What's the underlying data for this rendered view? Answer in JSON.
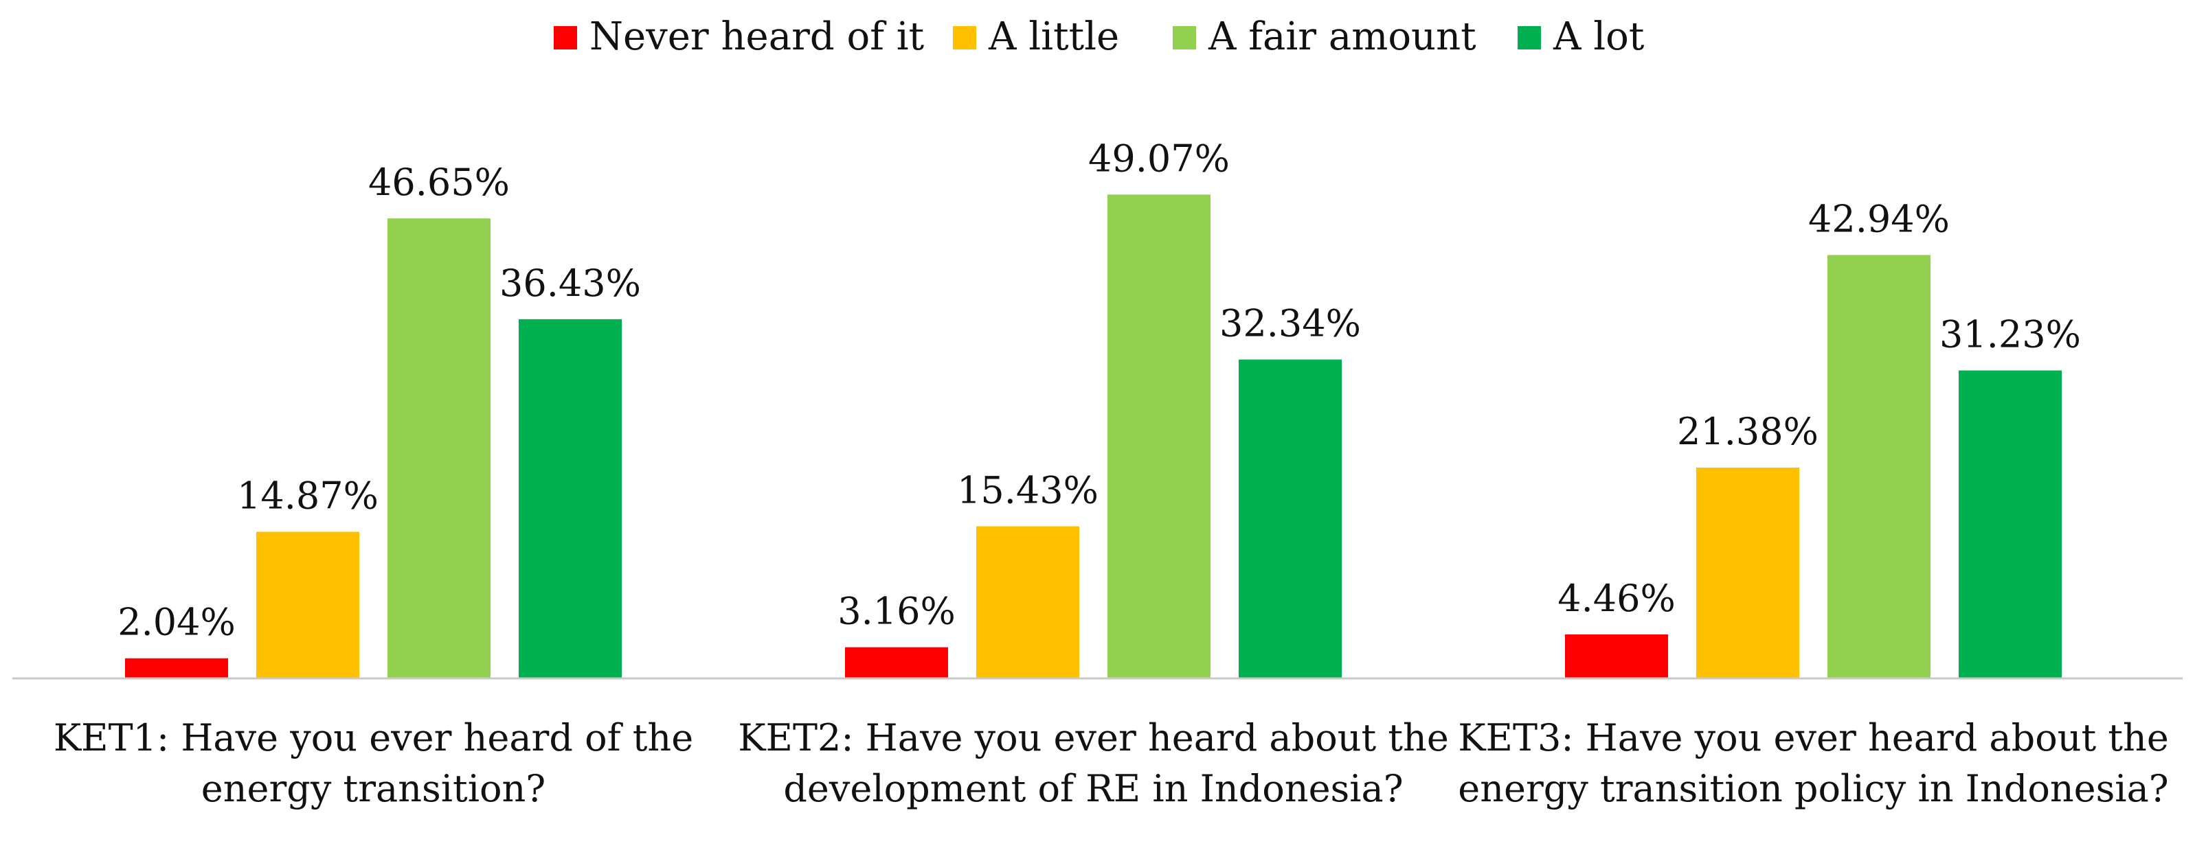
{
  "chart_data": {
    "type": "bar",
    "title": "",
    "xlabel": "",
    "ylabel": "",
    "ylim": [
      0,
      50
    ],
    "grid": false,
    "legend_position": "top-center",
    "categories": [
      [
        "KET1: Have you ever heard of the",
        "energy transition?"
      ],
      [
        "KET2: Have you ever heard about the",
        "development of RE in Indonesia?"
      ],
      [
        "KET3: Have you ever heard about the",
        "energy transition policy in Indonesia?"
      ]
    ],
    "series": [
      {
        "name": "Never heard of it",
        "color": "#FF0000",
        "values": [
          2.04,
          3.16,
          4.46
        ],
        "labels": [
          "2.04%",
          "3.16%",
          "4.46%"
        ]
      },
      {
        "name": "A little",
        "color": "#FFC000",
        "values": [
          14.87,
          15.43,
          21.38
        ],
        "labels": [
          "14.87%",
          "15.43%",
          "21.38%"
        ]
      },
      {
        "name": "A fair amount",
        "color": "#92D050",
        "values": [
          46.65,
          49.07,
          42.94
        ],
        "labels": [
          "46.65%",
          "49.07%",
          "42.94%"
        ]
      },
      {
        "name": "A lot",
        "color": "#00B050",
        "values": [
          36.43,
          32.34,
          31.23
        ],
        "labels": [
          "36.43%",
          "32.34%",
          "31.23%"
        ]
      }
    ]
  }
}
